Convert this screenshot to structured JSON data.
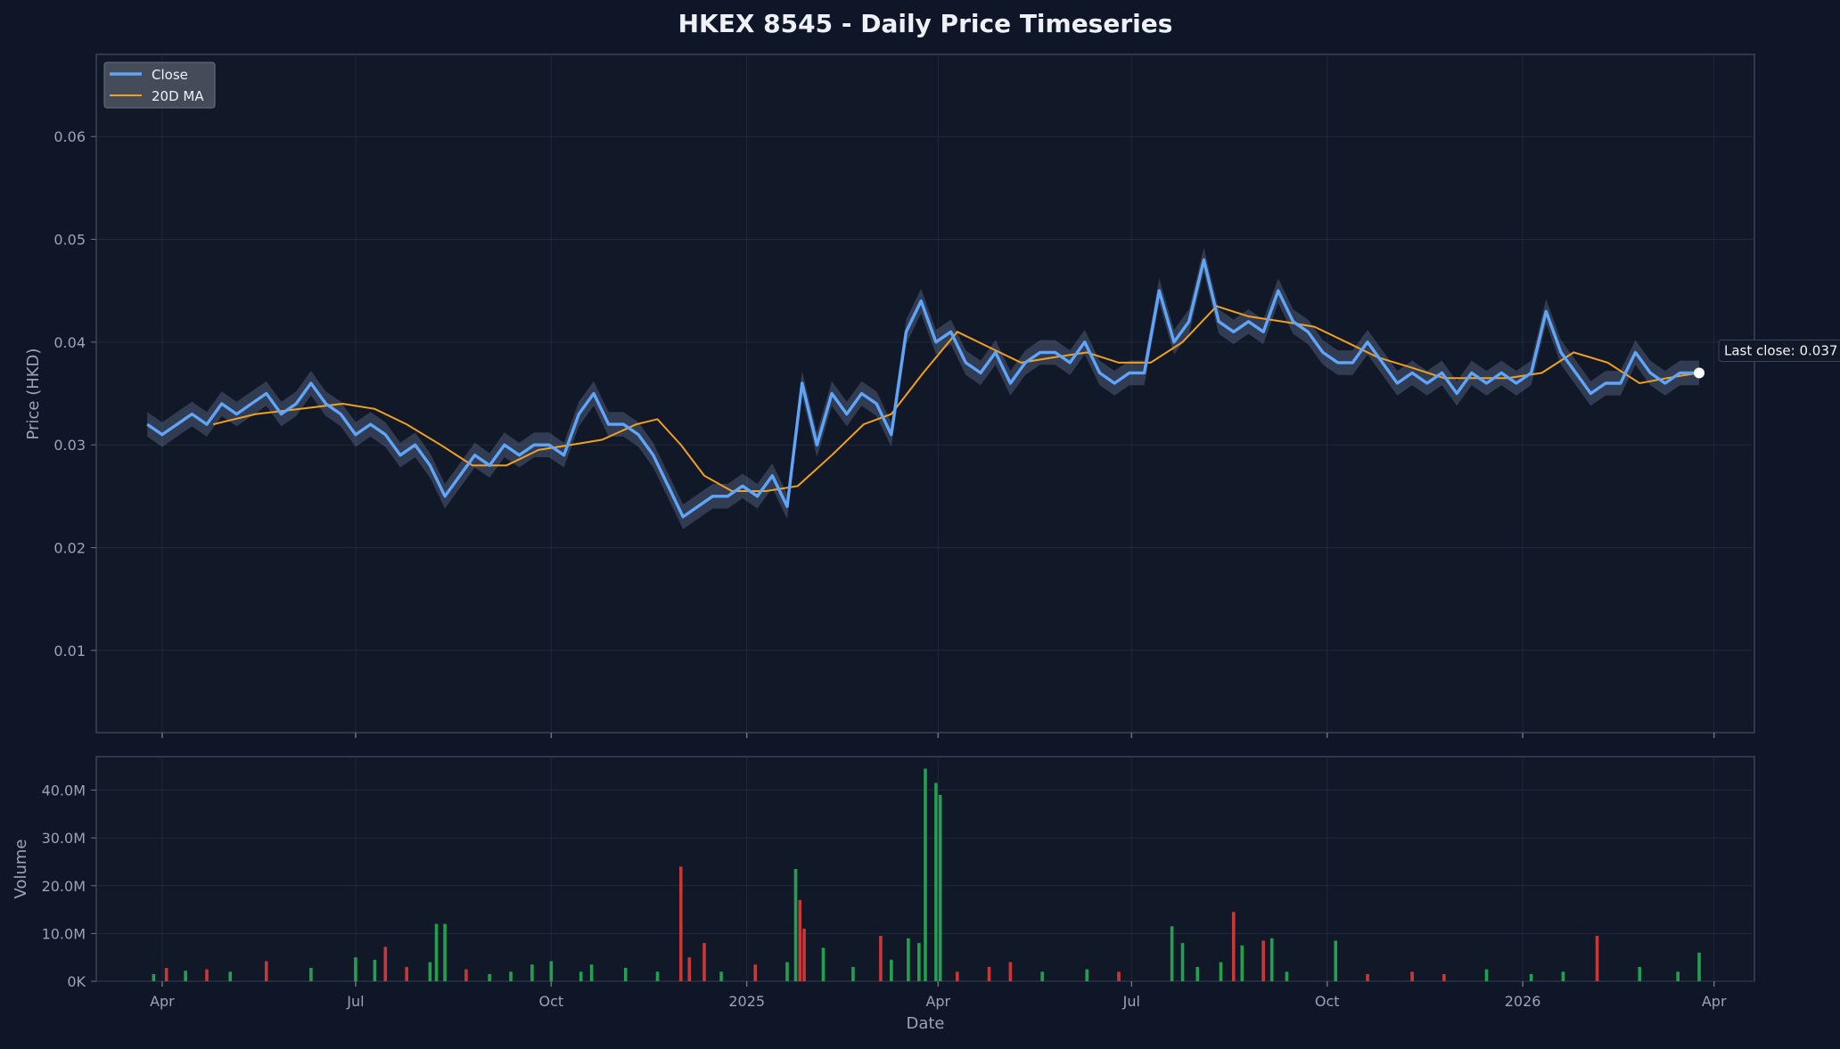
{
  "chart_data": [
    {
      "type": "line",
      "title": "HKEX 8545 - Daily Price Timeseries",
      "ylabel": "Price (HKD)",
      "xlim": [
        "2024-03-01",
        "2026-04-20"
      ],
      "ylim": [
        0.002,
        0.068
      ],
      "yticks": [
        "0.01",
        "0.02",
        "0.03",
        "0.04",
        "0.05",
        "0.06"
      ],
      "legend": {
        "placement": "top-left",
        "entries": [
          "Close",
          "20D MA"
        ]
      },
      "grid": true,
      "colors": {
        "close": "#60a5fa",
        "ma": "#f0a020",
        "band": "#7f93b5"
      },
      "annotation": {
        "text": "Last close: 0.037",
        "date": "2026-03-25",
        "value": 0.037
      },
      "series": [
        {
          "name": "Close",
          "points": [
            [
              "2024-03-25",
              0.032
            ],
            [
              "2024-04-01",
              0.031
            ],
            [
              "2024-04-08",
              0.032
            ],
            [
              "2024-04-15",
              0.033
            ],
            [
              "2024-04-22",
              0.032
            ],
            [
              "2024-04-29",
              0.034
            ],
            [
              "2024-05-06",
              0.033
            ],
            [
              "2024-05-13",
              0.034
            ],
            [
              "2024-05-20",
              0.035
            ],
            [
              "2024-05-27",
              0.033
            ],
            [
              "2024-06-03",
              0.034
            ],
            [
              "2024-06-10",
              0.036
            ],
            [
              "2024-06-17",
              0.034
            ],
            [
              "2024-06-24",
              0.033
            ],
            [
              "2024-07-01",
              0.031
            ],
            [
              "2024-07-08",
              0.032
            ],
            [
              "2024-07-15",
              0.031
            ],
            [
              "2024-07-22",
              0.029
            ],
            [
              "2024-07-29",
              0.03
            ],
            [
              "2024-08-05",
              0.028
            ],
            [
              "2024-08-12",
              0.025
            ],
            [
              "2024-08-19",
              0.027
            ],
            [
              "2024-08-26",
              0.029
            ],
            [
              "2024-09-02",
              0.028
            ],
            [
              "2024-09-09",
              0.03
            ],
            [
              "2024-09-16",
              0.029
            ],
            [
              "2024-09-23",
              0.03
            ],
            [
              "2024-09-30",
              0.03
            ],
            [
              "2024-10-07",
              0.029
            ],
            [
              "2024-10-14",
              0.033
            ],
            [
              "2024-10-21",
              0.035
            ],
            [
              "2024-10-28",
              0.032
            ],
            [
              "2024-11-04",
              0.032
            ],
            [
              "2024-11-11",
              0.031
            ],
            [
              "2024-11-18",
              0.029
            ],
            [
              "2024-11-25",
              0.026
            ],
            [
              "2024-12-02",
              0.023
            ],
            [
              "2024-12-09",
              0.024
            ],
            [
              "2024-12-16",
              0.025
            ],
            [
              "2024-12-23",
              0.025
            ],
            [
              "2024-12-30",
              0.026
            ],
            [
              "2025-01-06",
              0.025
            ],
            [
              "2025-01-13",
              0.027
            ],
            [
              "2025-01-20",
              0.024
            ],
            [
              "2025-01-27",
              0.036
            ],
            [
              "2025-02-03",
              0.03
            ],
            [
              "2025-02-10",
              0.035
            ],
            [
              "2025-02-17",
              0.033
            ],
            [
              "2025-02-24",
              0.035
            ],
            [
              "2025-03-03",
              0.034
            ],
            [
              "2025-03-10",
              0.031
            ],
            [
              "2025-03-17",
              0.041
            ],
            [
              "2025-03-24",
              0.044
            ],
            [
              "2025-03-31",
              0.04
            ],
            [
              "2025-04-07",
              0.041
            ],
            [
              "2025-04-14",
              0.038
            ],
            [
              "2025-04-21",
              0.037
            ],
            [
              "2025-04-28",
              0.039
            ],
            [
              "2025-05-05",
              0.036
            ],
            [
              "2025-05-12",
              0.038
            ],
            [
              "2025-05-19",
              0.039
            ],
            [
              "2025-05-26",
              0.039
            ],
            [
              "2025-06-02",
              0.038
            ],
            [
              "2025-06-09",
              0.04
            ],
            [
              "2025-06-16",
              0.037
            ],
            [
              "2025-06-23",
              0.036
            ],
            [
              "2025-06-30",
              0.037
            ],
            [
              "2025-07-07",
              0.037
            ],
            [
              "2025-07-14",
              0.045
            ],
            [
              "2025-07-21",
              0.04
            ],
            [
              "2025-07-28",
              0.042
            ],
            [
              "2025-08-04",
              0.048
            ],
            [
              "2025-08-11",
              0.042
            ],
            [
              "2025-08-18",
              0.041
            ],
            [
              "2025-08-25",
              0.042
            ],
            [
              "2025-09-01",
              0.041
            ],
            [
              "2025-09-08",
              0.045
            ],
            [
              "2025-09-15",
              0.042
            ],
            [
              "2025-09-22",
              0.041
            ],
            [
              "2025-09-29",
              0.039
            ],
            [
              "2025-10-06",
              0.038
            ],
            [
              "2025-10-13",
              0.038
            ],
            [
              "2025-10-20",
              0.04
            ],
            [
              "2025-10-27",
              0.038
            ],
            [
              "2025-11-03",
              0.036
            ],
            [
              "2025-11-10",
              0.037
            ],
            [
              "2025-11-17",
              0.036
            ],
            [
              "2025-11-24",
              0.037
            ],
            [
              "2025-12-01",
              0.035
            ],
            [
              "2025-12-08",
              0.037
            ],
            [
              "2025-12-15",
              0.036
            ],
            [
              "2025-12-22",
              0.037
            ],
            [
              "2025-12-29",
              0.036
            ],
            [
              "2026-01-05",
              0.037
            ],
            [
              "2026-01-12",
              0.043
            ],
            [
              "2026-01-19",
              0.039
            ],
            [
              "2026-01-26",
              0.037
            ],
            [
              "2026-02-02",
              0.035
            ],
            [
              "2026-02-09",
              0.036
            ],
            [
              "2026-02-16",
              0.036
            ],
            [
              "2026-02-23",
              0.039
            ],
            [
              "2026-03-02",
              0.037
            ],
            [
              "2026-03-09",
              0.036
            ],
            [
              "2026-03-16",
              0.037
            ],
            [
              "2026-03-25",
              0.037
            ]
          ]
        },
        {
          "name": "20D MA",
          "points": [
            [
              "2024-04-25",
              0.032
            ],
            [
              "2024-05-15",
              0.033
            ],
            [
              "2024-06-05",
              0.0335
            ],
            [
              "2024-06-25",
              0.034
            ],
            [
              "2024-07-10",
              0.0335
            ],
            [
              "2024-07-25",
              0.032
            ],
            [
              "2024-08-10",
              0.03
            ],
            [
              "2024-08-25",
              0.028
            ],
            [
              "2024-09-10",
              0.028
            ],
            [
              "2024-09-25",
              0.0295
            ],
            [
              "2024-10-10",
              0.03
            ],
            [
              "2024-10-25",
              0.0305
            ],
            [
              "2024-11-10",
              0.032
            ],
            [
              "2024-11-20",
              0.0325
            ],
            [
              "2024-12-01",
              0.03
            ],
            [
              "2024-12-12",
              0.027
            ],
            [
              "2024-12-25",
              0.0255
            ],
            [
              "2025-01-10",
              0.0255
            ],
            [
              "2025-01-25",
              0.026
            ],
            [
              "2025-02-10",
              0.029
            ],
            [
              "2025-02-25",
              0.032
            ],
            [
              "2025-03-10",
              0.033
            ],
            [
              "2025-03-25",
              0.037
            ],
            [
              "2025-04-10",
              0.041
            ],
            [
              "2025-04-25",
              0.0395
            ],
            [
              "2025-05-10",
              0.038
            ],
            [
              "2025-05-25",
              0.0385
            ],
            [
              "2025-06-10",
              0.039
            ],
            [
              "2025-06-25",
              0.038
            ],
            [
              "2025-07-10",
              0.038
            ],
            [
              "2025-07-25",
              0.04
            ],
            [
              "2025-08-10",
              0.0435
            ],
            [
              "2025-08-25",
              0.0425
            ],
            [
              "2025-09-10",
              0.042
            ],
            [
              "2025-09-25",
              0.0415
            ],
            [
              "2025-10-10",
              0.04
            ],
            [
              "2025-10-25",
              0.0385
            ],
            [
              "2025-11-10",
              0.0375
            ],
            [
              "2025-11-25",
              0.0365
            ],
            [
              "2025-12-10",
              0.0365
            ],
            [
              "2025-12-25",
              0.0365
            ],
            [
              "2026-01-10",
              0.037
            ],
            [
              "2026-01-25",
              0.039
            ],
            [
              "2026-02-10",
              0.038
            ],
            [
              "2026-02-25",
              0.036
            ],
            [
              "2026-03-10",
              0.0365
            ],
            [
              "2026-03-25",
              0.037
            ]
          ]
        }
      ]
    },
    {
      "type": "bar",
      "ylabel": "Volume",
      "xlabel": "Date",
      "ylim": [
        0,
        47000000
      ],
      "yticks": [
        "0K",
        "10.0M",
        "20.0M",
        "30.0M",
        "40.0M"
      ],
      "xticks": [
        "Apr",
        "Jul",
        "Oct",
        "2025",
        "Apr",
        "Jul",
        "Oct",
        "2026",
        "Apr"
      ],
      "grid": true,
      "colors": {
        "up": "#22a050",
        "down": "#c83838"
      },
      "bars": [
        [
          "2024-03-28",
          1500000,
          "up"
        ],
        [
          "2024-04-03",
          2800000,
          "down"
        ],
        [
          "2024-04-12",
          2200000,
          "up"
        ],
        [
          "2024-04-22",
          2500000,
          "down"
        ],
        [
          "2024-05-03",
          2000000,
          "up"
        ],
        [
          "2024-05-20",
          4200000,
          "down"
        ],
        [
          "2024-06-10",
          2800000,
          "up"
        ],
        [
          "2024-07-01",
          5000000,
          "up"
        ],
        [
          "2024-07-10",
          4500000,
          "up"
        ],
        [
          "2024-07-15",
          7200000,
          "down"
        ],
        [
          "2024-07-25",
          3000000,
          "down"
        ],
        [
          "2024-08-05",
          4000000,
          "up"
        ],
        [
          "2024-08-08",
          12000000,
          "up"
        ],
        [
          "2024-08-12",
          12000000,
          "up"
        ],
        [
          "2024-08-22",
          2500000,
          "down"
        ],
        [
          "2024-09-02",
          1500000,
          "up"
        ],
        [
          "2024-09-12",
          2000000,
          "up"
        ],
        [
          "2024-09-22",
          3500000,
          "up"
        ],
        [
          "2024-10-01",
          4200000,
          "up"
        ],
        [
          "2024-10-15",
          2000000,
          "up"
        ],
        [
          "2024-10-20",
          3500000,
          "up"
        ],
        [
          "2024-11-05",
          2800000,
          "up"
        ],
        [
          "2024-11-20",
          2000000,
          "up"
        ],
        [
          "2024-12-01",
          24000000,
          "down"
        ],
        [
          "2024-12-05",
          5000000,
          "down"
        ],
        [
          "2024-12-12",
          8000000,
          "down"
        ],
        [
          "2024-12-20",
          2000000,
          "up"
        ],
        [
          "2025-01-05",
          3500000,
          "down"
        ],
        [
          "2025-01-20",
          4000000,
          "up"
        ],
        [
          "2025-01-24",
          23500000,
          "up"
        ],
        [
          "2025-01-26",
          17000000,
          "down"
        ],
        [
          "2025-01-28",
          11000000,
          "down"
        ],
        [
          "2025-02-06",
          7000000,
          "up"
        ],
        [
          "2025-02-20",
          3000000,
          "up"
        ],
        [
          "2025-03-05",
          9500000,
          "down"
        ],
        [
          "2025-03-10",
          4500000,
          "up"
        ],
        [
          "2025-03-18",
          9000000,
          "up"
        ],
        [
          "2025-03-23",
          8000000,
          "up"
        ],
        [
          "2025-03-26",
          44500000,
          "up"
        ],
        [
          "2025-03-31",
          41500000,
          "up"
        ],
        [
          "2025-04-02",
          39000000,
          "up"
        ],
        [
          "2025-04-10",
          2000000,
          "down"
        ],
        [
          "2025-04-25",
          3000000,
          "down"
        ],
        [
          "2025-05-05",
          4000000,
          "down"
        ],
        [
          "2025-05-20",
          2000000,
          "up"
        ],
        [
          "2025-06-10",
          2500000,
          "up"
        ],
        [
          "2025-06-25",
          2000000,
          "down"
        ],
        [
          "2025-07-20",
          11500000,
          "up"
        ],
        [
          "2025-07-25",
          8000000,
          "up"
        ],
        [
          "2025-08-01",
          3000000,
          "up"
        ],
        [
          "2025-08-12",
          4000000,
          "up"
        ],
        [
          "2025-08-18",
          14500000,
          "down"
        ],
        [
          "2025-08-22",
          7500000,
          "up"
        ],
        [
          "2025-09-01",
          8500000,
          "down"
        ],
        [
          "2025-09-05",
          9000000,
          "up"
        ],
        [
          "2025-09-12",
          2000000,
          "up"
        ],
        [
          "2025-10-05",
          8500000,
          "up"
        ],
        [
          "2025-10-20",
          1500000,
          "down"
        ],
        [
          "2025-11-10",
          2000000,
          "down"
        ],
        [
          "2025-11-25",
          1500000,
          "down"
        ],
        [
          "2025-12-15",
          2500000,
          "up"
        ],
        [
          "2026-01-05",
          1500000,
          "up"
        ],
        [
          "2026-01-20",
          2000000,
          "up"
        ],
        [
          "2026-02-05",
          9500000,
          "down"
        ],
        [
          "2026-02-25",
          3000000,
          "up"
        ],
        [
          "2026-03-15",
          2000000,
          "up"
        ],
        [
          "2026-03-25",
          6000000,
          "up"
        ]
      ]
    }
  ]
}
